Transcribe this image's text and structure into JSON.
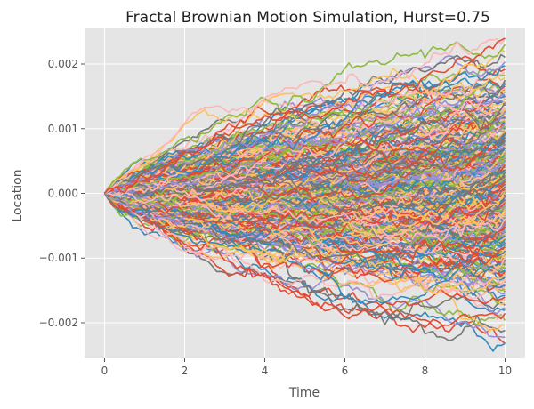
{
  "chart_data": {
    "type": "line",
    "title": "Fractal Brownian Motion Simulation, Hurst=0.75",
    "xlabel": "Time",
    "ylabel": "Location",
    "xlim": [
      -0.5,
      10.5
    ],
    "ylim": [
      -0.00255,
      0.00255
    ],
    "xticks": [
      0,
      2,
      4,
      6,
      8,
      10
    ],
    "xtick_labels": [
      "0",
      "2",
      "4",
      "6",
      "8",
      "10"
    ],
    "yticks": [
      -0.002,
      -0.001,
      0.0,
      0.001,
      0.002
    ],
    "ytick_labels": [
      "−0.002",
      "−0.001",
      "0.000",
      "0.001",
      "0.002"
    ],
    "grid": true,
    "background": "#e5e5e5",
    "grid_color": "#ffffff",
    "hurst": 0.75,
    "start": {
      "x": 0,
      "y": 0
    },
    "end_x": 10,
    "end_range": [
      -0.00232,
      0.0024
    ],
    "path_count": 400,
    "colors": [
      "#E24A33",
      "#348ABD",
      "#988ED5",
      "#777777",
      "#FBC15E",
      "#8EBA42",
      "#FFB5B8"
    ]
  }
}
